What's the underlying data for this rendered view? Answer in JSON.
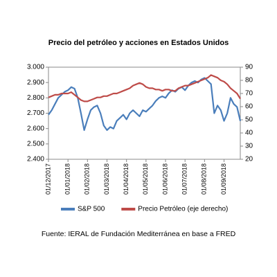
{
  "chart_data": {
    "type": "line",
    "title": "Precio del petróleo y acciones en Estados Unidos",
    "source": "Fuente: IERAL de Fundación Mediterránea en base a FRED",
    "categories": [
      "01/12/2017",
      null,
      null,
      null,
      null,
      null,
      "01/01/2018",
      null,
      null,
      null,
      null,
      null,
      "01/02/2018",
      null,
      null,
      null,
      null,
      null,
      "01/03/2018",
      null,
      null,
      null,
      null,
      null,
      "01/04/2018",
      null,
      null,
      null,
      null,
      null,
      "01/05/2018",
      null,
      null,
      null,
      null,
      null,
      "01/06/2018",
      null,
      null,
      null,
      null,
      null,
      "01/07/2018",
      null,
      null,
      null,
      null,
      null,
      "01/08/2018",
      null,
      null,
      null,
      null,
      null,
      "01/09/2018",
      null,
      null,
      null,
      null,
      null
    ],
    "series": [
      {
        "name": "S&P 500",
        "color": "#4a7ebb",
        "values": [
          2690,
          2720,
          2760,
          2800,
          2820,
          2840,
          2850,
          2870,
          2860,
          2800,
          2700,
          2590,
          2660,
          2720,
          2740,
          2750,
          2700,
          2620,
          2590,
          2610,
          2600,
          2650,
          2670,
          2690,
          2660,
          2700,
          2720,
          2700,
          2680,
          2720,
          2710,
          2730,
          2750,
          2780,
          2800,
          2810,
          2800,
          2830,
          2850,
          2840,
          2860,
          2870,
          2850,
          2880,
          2900,
          2910,
          2900,
          2920,
          2930,
          2910,
          2890,
          2700,
          2750,
          2720,
          2650,
          2700,
          2800,
          2760,
          2740,
          2650
        ]
      },
      {
        "name": "Precio Petróleo (eje derecho)",
        "color": "#be4b48",
        "axis": "y2",
        "values": [
          67,
          68,
          69,
          69,
          70,
          70,
          70,
          71,
          69,
          67,
          65,
          64,
          64,
          65,
          66,
          67,
          67,
          68,
          68,
          69,
          70,
          70,
          71,
          72,
          73,
          74,
          76,
          77,
          78,
          77,
          75,
          74,
          74,
          73,
          73,
          72,
          73,
          73,
          72,
          72,
          74,
          75,
          76,
          76,
          77,
          78,
          79,
          80,
          81,
          82,
          84,
          83,
          82,
          80,
          79,
          77,
          74,
          72,
          70,
          66
        ]
      }
    ],
    "ylim": [
      2400,
      3000
    ],
    "yticks": [
      {
        "value": 2400,
        "label": "2.400"
      },
      {
        "value": 2500,
        "label": "2.500"
      },
      {
        "value": 2600,
        "label": "2.600"
      },
      {
        "value": 2700,
        "label": "2.700"
      },
      {
        "value": 2800,
        "label": "2.800"
      },
      {
        "value": 2900,
        "label": "2.900"
      },
      {
        "value": 3000,
        "label": "3.000"
      }
    ],
    "y2lim": [
      20,
      90
    ],
    "y2ticks": [
      20,
      30,
      40,
      50,
      60,
      70,
      80,
      90
    ],
    "legend": "bottom"
  }
}
